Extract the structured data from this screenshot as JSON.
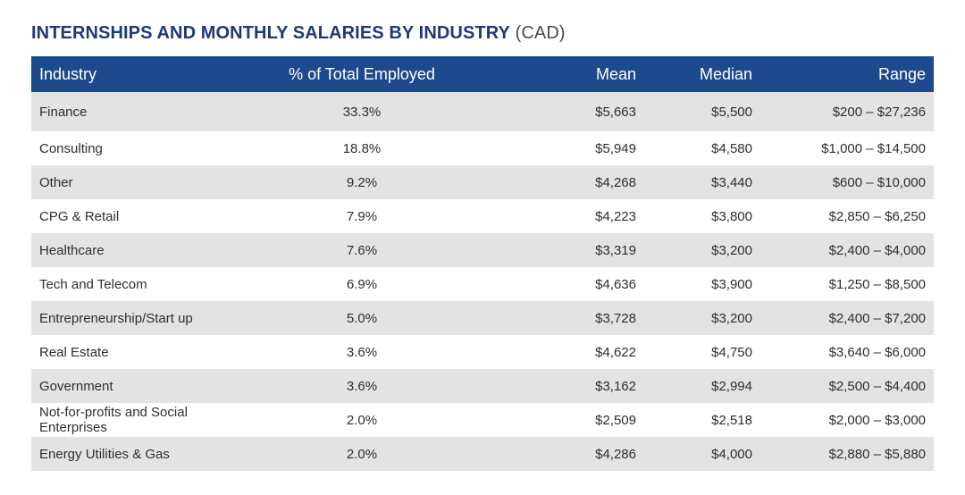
{
  "title": {
    "main": "INTERNSHIPS AND MONTHLY SALARIES BY INDUSTRY",
    "suffix": "(CAD)"
  },
  "table": {
    "headers": {
      "industry": "Industry",
      "percent": "% of Total Employed",
      "mean": "Mean",
      "median": "Median",
      "range": "Range"
    },
    "rows": [
      {
        "industry": "Finance",
        "percent": "33.3%",
        "mean": "$5,663",
        "median": "$5,500",
        "range": "$200 – $27,236"
      },
      {
        "industry": "Consulting",
        "percent": "18.8%",
        "mean": "$5,949",
        "median": "$4,580",
        "range": "$1,000 – $14,500"
      },
      {
        "industry": "Other",
        "percent": "9.2%",
        "mean": "$4,268",
        "median": "$3,440",
        "range": "$600 – $10,000"
      },
      {
        "industry": "CPG & Retail",
        "percent": "7.9%",
        "mean": "$4,223",
        "median": "$3,800",
        "range": "$2,850 – $6,250"
      },
      {
        "industry": "Healthcare",
        "percent": "7.6%",
        "mean": "$3,319",
        "median": "$3,200",
        "range": "$2,400 – $4,000"
      },
      {
        "industry": "Tech and Telecom",
        "percent": "6.9%",
        "mean": "$4,636",
        "median": "$3,900",
        "range": "$1,250 – $8,500"
      },
      {
        "industry": "Entrepreneurship/Start up",
        "percent": "5.0%",
        "mean": "$3,728",
        "median": "$3,200",
        "range": "$2,400 – $7,200"
      },
      {
        "industry": "Real Estate",
        "percent": "3.6%",
        "mean": "$4,622",
        "median": "$4,750",
        "range": "$3,640 – $6,000"
      },
      {
        "industry": "Government",
        "percent": "3.6%",
        "mean": "$3,162",
        "median": "$2,994",
        "range": "$2,500 – $4,400"
      },
      {
        "industry": "Not-for-profits and Social Enterprises",
        "percent": "2.0%",
        "mean": "$2,509",
        "median": "$2,518",
        "range": "$2,000 – $3,000"
      },
      {
        "industry": "Energy Utilities & Gas",
        "percent": "2.0%",
        "mean": "$4,286",
        "median": "$4,000",
        "range": "$2,880 – $5,880"
      }
    ]
  },
  "colors": {
    "title": "#1e3a78",
    "header_background": "#1d4a8c",
    "shaded_row": "#e3e3e4"
  }
}
